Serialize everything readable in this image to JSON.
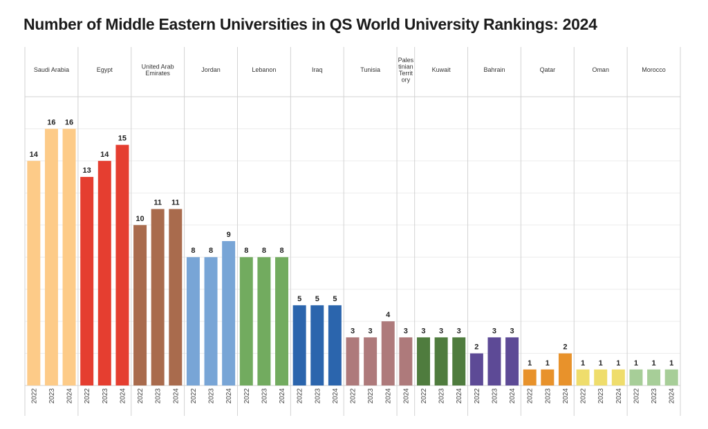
{
  "chart_data": {
    "type": "bar",
    "title": "Number of Middle Eastern Universities in QS World University Rankings: 2024",
    "xlabel": "",
    "ylabel": "",
    "ylim": [
      0,
      18
    ],
    "grid": true,
    "years": [
      "2022",
      "2023",
      "2024"
    ],
    "groups": [
      {
        "name": "Saudi Arabia",
        "label_lines": [
          "Saudi Arabia"
        ],
        "color": "#FDCB88",
        "values": [
          14,
          16,
          16
        ]
      },
      {
        "name": "Egypt",
        "label_lines": [
          "Egypt"
        ],
        "color": "#E53E30",
        "values": [
          13,
          14,
          15
        ]
      },
      {
        "name": "United Arab Emirates",
        "label_lines": [
          "United Arab",
          "Emirates"
        ],
        "color": "#A96B4D",
        "values": [
          10,
          11,
          11
        ]
      },
      {
        "name": "Jordan",
        "label_lines": [
          "Jordan"
        ],
        "color": "#78A5D6",
        "values": [
          8,
          8,
          9
        ]
      },
      {
        "name": "Lebanon",
        "label_lines": [
          "Lebanon"
        ],
        "color": "#72AB5F",
        "values": [
          8,
          8,
          8
        ]
      },
      {
        "name": "Iraq",
        "label_lines": [
          "Iraq"
        ],
        "color": "#2B65AD",
        "values": [
          5,
          5,
          5
        ]
      },
      {
        "name": "Tunisia",
        "label_lines": [
          "Tunisia"
        ],
        "color": "#AE7A7B",
        "values": [
          3,
          3,
          4
        ]
      },
      {
        "name": "Palestinian Territory",
        "label_lines": [
          "Pales",
          "tinian",
          "Territ",
          "ory"
        ],
        "color": "#AE7A7B",
        "values": [
          3
        ]
      },
      {
        "name": "Kuwait",
        "label_lines": [
          "Kuwait"
        ],
        "color": "#4F7C3E",
        "values": [
          3,
          3,
          3
        ]
      },
      {
        "name": "Bahrain",
        "label_lines": [
          "Bahrain"
        ],
        "color": "#5D4A96",
        "values": [
          2,
          3,
          3
        ]
      },
      {
        "name": "Qatar",
        "label_lines": [
          "Qatar"
        ],
        "color": "#E8922B",
        "values": [
          1,
          1,
          2
        ]
      },
      {
        "name": "Oman",
        "label_lines": [
          "Oman"
        ],
        "color": "#EFDD6C",
        "values": [
          1,
          1,
          1
        ]
      },
      {
        "name": "Morocco",
        "label_lines": [
          "Morocco"
        ],
        "color": "#A7CE98",
        "values": [
          1,
          1,
          1
        ]
      }
    ],
    "group_years": [
      [
        "2022",
        "2023",
        "2024"
      ],
      [
        "2022",
        "2023",
        "2024"
      ],
      [
        "2022",
        "2023",
        "2024"
      ],
      [
        "2022",
        "2023",
        "2024"
      ],
      [
        "2022",
        "2023",
        "2024"
      ],
      [
        "2022",
        "2023",
        "2024"
      ],
      [
        "2022",
        "2023",
        "2024"
      ],
      [
        "2024"
      ],
      [
        "2022",
        "2023",
        "2024"
      ],
      [
        "2022",
        "2023",
        "2024"
      ],
      [
        "2022",
        "2023",
        "2024"
      ],
      [
        "2022",
        "2023",
        "2024"
      ],
      [
        "2022",
        "2023",
        "2024"
      ]
    ]
  }
}
